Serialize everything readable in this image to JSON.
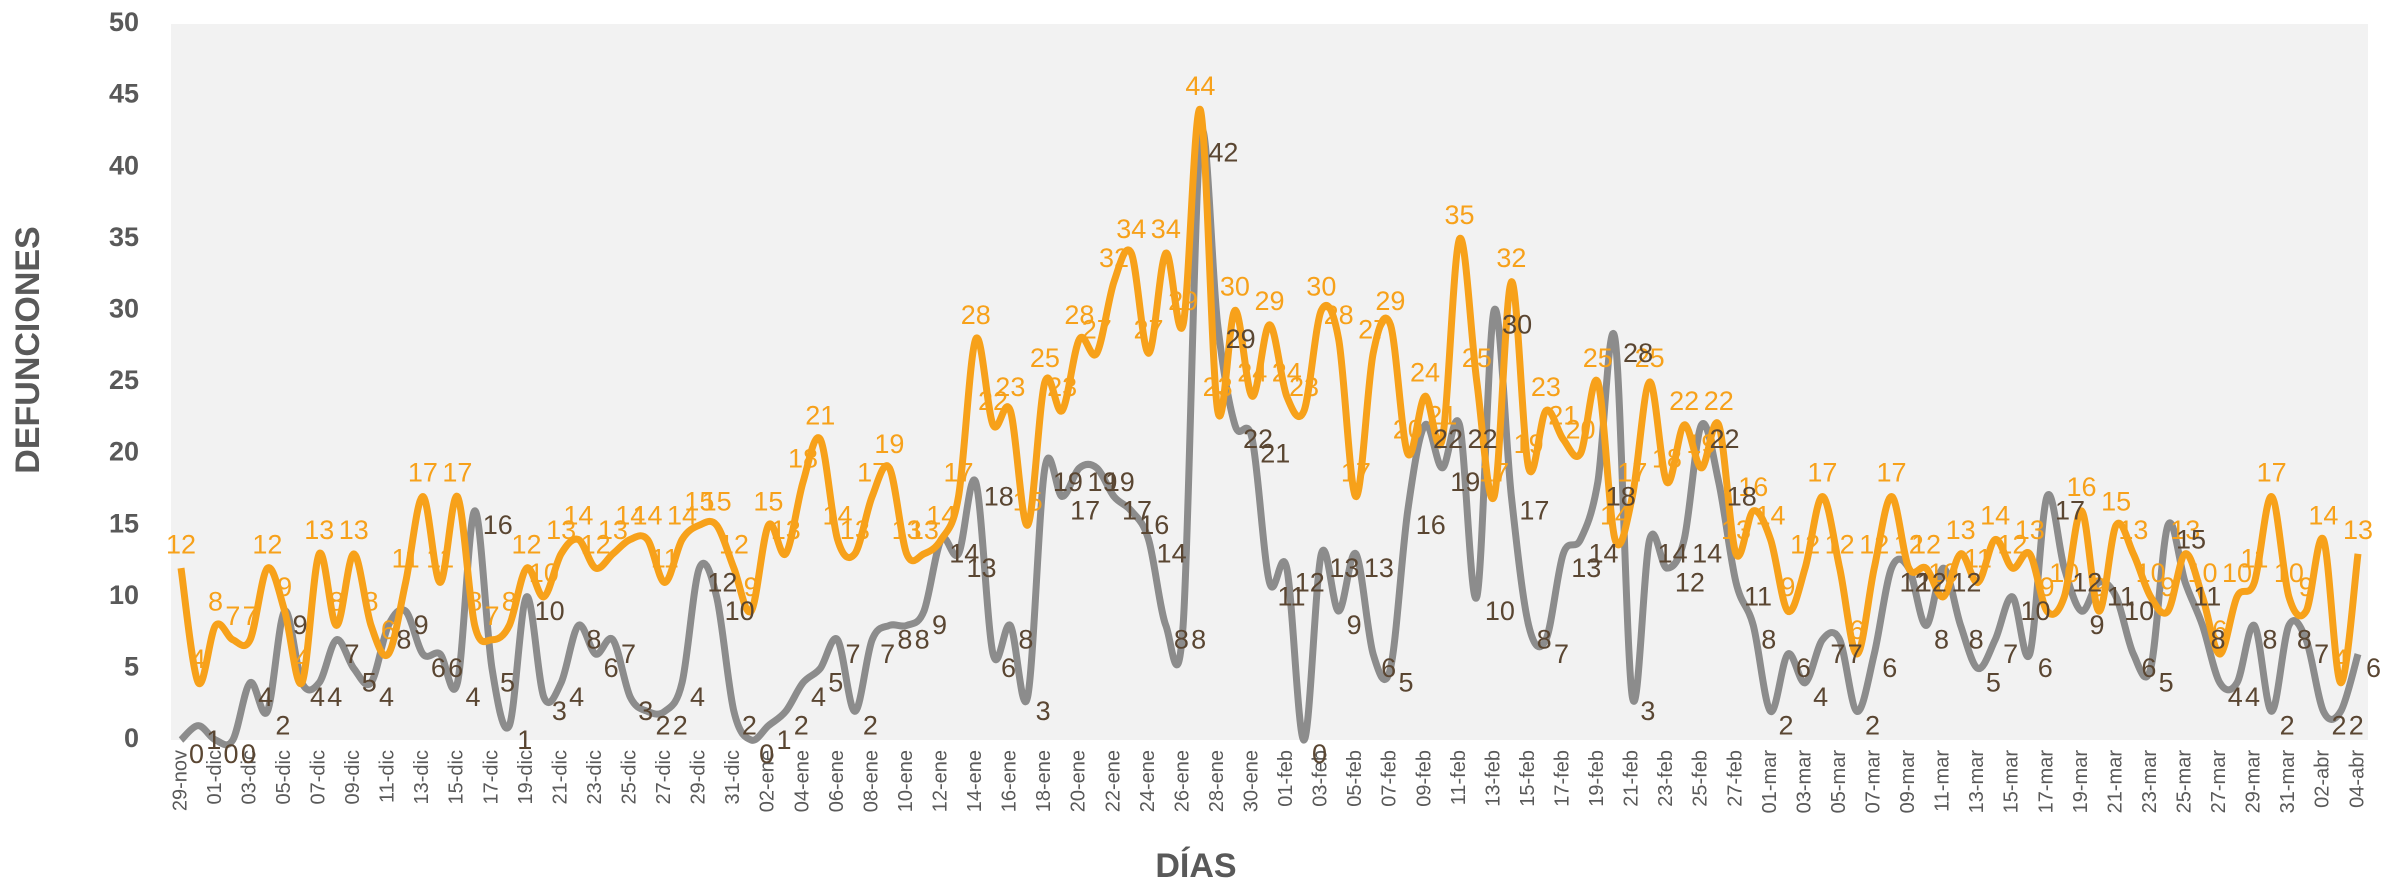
{
  "chart_data": {
    "type": "line",
    "xlabel": "DÍAS",
    "ylabel": "DEFUNCIONES",
    "categories": [
      "29-nov",
      null,
      "01-dic",
      null,
      "03-dic",
      null,
      "05-dic",
      null,
      "07-dic",
      null,
      "09-dic",
      null,
      "11-dic",
      null,
      "13-dic",
      null,
      "15-dic",
      null,
      "17-dic",
      null,
      "19-dic",
      null,
      "21-dic",
      null,
      "23-dic",
      null,
      "25-dic",
      null,
      "27-dic",
      null,
      "29-dic",
      null,
      "31-dic",
      null,
      "02-ene",
      null,
      "04-ene",
      null,
      "06-ene",
      null,
      "08-ene",
      null,
      "10-ene",
      null,
      "12-ene",
      null,
      "14-ene",
      null,
      "16-ene",
      null,
      "18-ene",
      null,
      "20-ene",
      null,
      "22-ene",
      null,
      "24-ene",
      null,
      "26-ene",
      null,
      "28-ene",
      null,
      "30-ene",
      null,
      "01-feb",
      null,
      "03-feb",
      null,
      "05-feb",
      null,
      "07-feb",
      null,
      "09-feb",
      null,
      "11-feb",
      null,
      "13-feb",
      null,
      "15-feb",
      null,
      "17-feb",
      null,
      "19-feb",
      null,
      "21-feb",
      null,
      "23-feb",
      null,
      "25-feb",
      null,
      "27-feb",
      null,
      "01-mar",
      null,
      "03-mar",
      null,
      "05-mar",
      null,
      "07-mar",
      null,
      "09-mar",
      null,
      "11-mar",
      null,
      "13-mar",
      null,
      "15-mar",
      null,
      "17-mar",
      null,
      "19-mar",
      null,
      "21-mar",
      null,
      "23-mar",
      null,
      "25-mar",
      null,
      "27-mar",
      null,
      "29-mar",
      null,
      "31-mar",
      null,
      "02-abr",
      null,
      "04-abr"
    ],
    "series": [
      {
        "color": "#f7a11a",
        "label_color": "#f7a11a",
        "values": [
          12,
          4,
          8,
          7,
          7,
          12,
          9,
          4,
          13,
          8,
          13,
          8,
          6,
          11,
          17,
          11,
          17,
          8,
          7,
          8,
          12,
          10,
          13,
          14,
          12,
          13,
          14,
          14,
          11,
          14,
          15,
          15,
          12,
          9,
          15,
          13,
          18,
          21,
          14,
          13,
          17,
          19,
          13,
          13,
          14,
          17,
          28,
          22,
          23,
          15,
          25,
          23,
          28,
          27,
          32,
          34,
          27,
          34,
          29,
          44,
          23,
          30,
          24,
          29,
          24,
          23,
          30,
          28,
          17,
          27,
          29,
          20,
          24,
          21,
          35,
          25,
          17,
          32,
          19,
          23,
          21,
          20,
          25,
          14,
          17,
          25,
          18,
          22,
          19,
          22,
          13,
          16,
          14,
          9,
          12,
          17,
          12,
          6,
          12,
          17,
          12,
          12,
          10,
          13,
          11,
          14,
          12,
          13,
          9,
          10,
          16,
          9,
          15,
          13,
          10,
          9,
          13,
          10,
          6,
          10,
          11,
          17,
          10,
          9,
          14,
          4,
          13
        ]
      },
      {
        "color": "#8c8c8c",
        "label_color": "#5a4632",
        "values": [
          0,
          1,
          0,
          0,
          4,
          2,
          9,
          4,
          4,
          7,
          5,
          4,
          8,
          9,
          6,
          6,
          4,
          16,
          5,
          1,
          10,
          3,
          4,
          8,
          6,
          7,
          3,
          2,
          2,
          4,
          12,
          10,
          2,
          0,
          1,
          2,
          4,
          5,
          7,
          2,
          7,
          8,
          8,
          9,
          14,
          13,
          18,
          6,
          8,
          3,
          19,
          17,
          19,
          19,
          17,
          16,
          14,
          8,
          8,
          42,
          29,
          22,
          21,
          11,
          12,
          0,
          13,
          9,
          13,
          6,
          5,
          16,
          22,
          19,
          22,
          10,
          30,
          17,
          8,
          7,
          13,
          14,
          18,
          28,
          3,
          14,
          12,
          14,
          22,
          18,
          11,
          8,
          2,
          6,
          4,
          7,
          7,
          2,
          6,
          12,
          12,
          8,
          12,
          8,
          5,
          7,
          10,
          6,
          17,
          12,
          9,
          11,
          10,
          6,
          5,
          15,
          11,
          8,
          4,
          4,
          8,
          2,
          8,
          7,
          2,
          2,
          6
        ]
      }
    ],
    "ylim": [
      0,
      50
    ],
    "yticks": [
      0,
      5,
      10,
      15,
      20,
      25,
      30,
      35,
      40,
      45,
      50
    ],
    "grid": false,
    "plot_background": "#f2f2f2"
  }
}
